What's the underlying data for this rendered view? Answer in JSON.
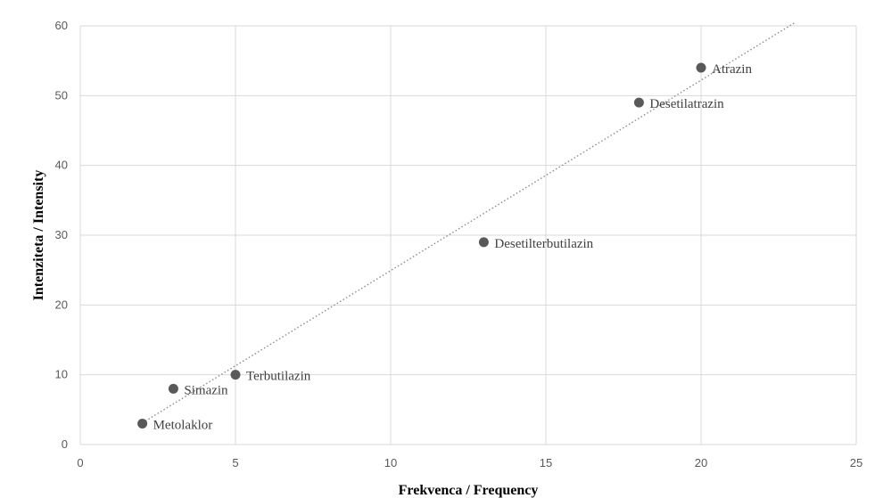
{
  "chart_data": {
    "type": "scatter",
    "xlabel": "Frekvenca / Frequency",
    "ylabel": "Intenziteta / Intensity",
    "xlim": [
      0,
      25
    ],
    "ylim": [
      0,
      60
    ],
    "xticks": [
      0,
      5,
      10,
      15,
      20,
      25
    ],
    "yticks": [
      0,
      10,
      20,
      30,
      40,
      50,
      60
    ],
    "grid": true,
    "colors": {
      "point": "#595959",
      "trendline": "#8c8c8c",
      "grid": "#d9d9d9"
    },
    "points": [
      {
        "label": "Metolaklor",
        "x": 2,
        "y": 3
      },
      {
        "label": "Simazin",
        "x": 3,
        "y": 8
      },
      {
        "label": "Terbutilazin",
        "x": 5,
        "y": 10
      },
      {
        "label": "Desetilterbutilazin",
        "x": 13,
        "y": 29
      },
      {
        "label": "Desetilatrazin",
        "x": 18,
        "y": 49
      },
      {
        "label": "Atrazin",
        "x": 20,
        "y": 54
      }
    ],
    "trendline": {
      "style": "dotted",
      "x": [
        2,
        23
      ],
      "y": [
        3.1,
        60.4
      ]
    }
  }
}
